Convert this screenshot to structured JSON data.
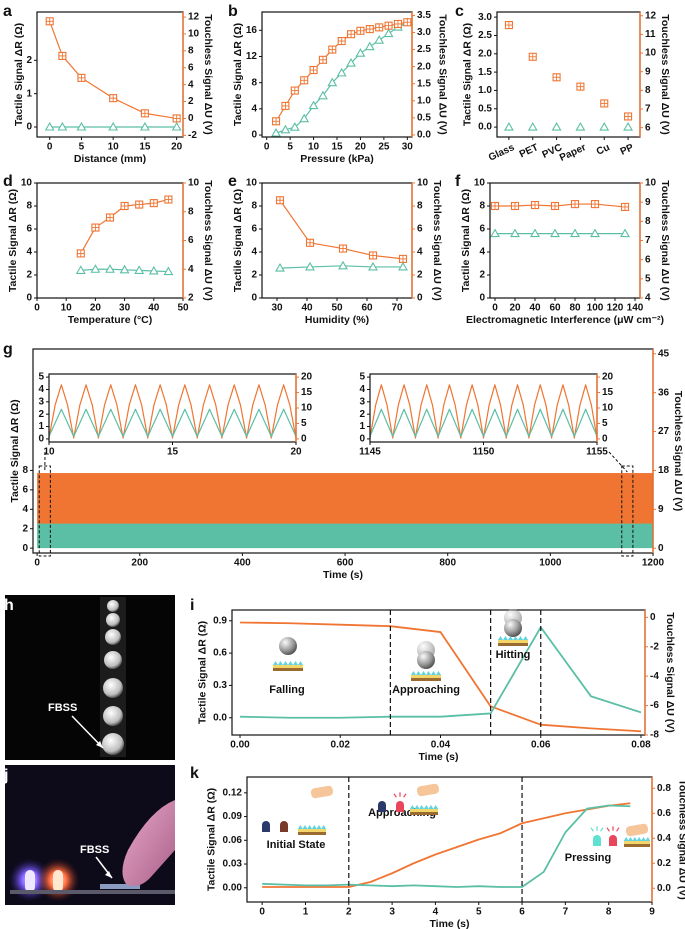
{
  "chart_data": [
    {
      "label": "a",
      "type": "line",
      "x": [
        0,
        2,
        5,
        10,
        15,
        20
      ],
      "xlim": [
        -2,
        21
      ],
      "xticks": [
        0,
        5,
        10,
        15,
        20
      ],
      "xlabel": "Distance (mm)",
      "ylim": [
        -0.3,
        3.45
      ],
      "yticks": [
        0,
        1,
        2
      ],
      "ylabel": "Tactile Signal ΔR (Ω)",
      "y2lim": [
        -2.2,
        12.6
      ],
      "y2ticks": [
        -2,
        0,
        2,
        4,
        6,
        8,
        10,
        12
      ],
      "y2label": "Touchless Signal ΔU (V)",
      "series": [
        {
          "color": "#5bbfa5",
          "marker": "triangle",
          "values": [
            0,
            0,
            0,
            0,
            0,
            0
          ]
        },
        {
          "color": "#f07533",
          "marker": "square",
          "axis": "y2",
          "values": [
            11.5,
            7.4,
            4.8,
            2.4,
            0.6,
            0
          ]
        }
      ]
    },
    {
      "label": "b",
      "type": "line",
      "x": [
        2,
        4,
        6,
        8,
        10,
        12,
        14,
        16,
        18,
        20,
        22,
        24,
        26,
        28,
        30
      ],
      "xlim": [
        -1,
        31
      ],
      "xticks": [
        0,
        5,
        10,
        15,
        20,
        25,
        30
      ],
      "xlabel": "Pressure (kPa)",
      "ylim": [
        -0.3,
        18.8
      ],
      "yticks": [
        0,
        4,
        8,
        12,
        16
      ],
      "ylabel": "Tactile Signal ΔR (Ω)",
      "y2lim": [
        -0.06,
        3.6
      ],
      "y2ticks": [
        {
          "value": 0,
          "label": "0.0"
        },
        {
          "value": 0.5,
          "label": "0.5"
        },
        {
          "value": 1,
          "label": "1.0"
        },
        {
          "value": 1.5,
          "label": "1.5"
        },
        {
          "value": 2,
          "label": "2.0"
        },
        {
          "value": 2.5,
          "label": "2.5"
        },
        {
          "value": 3,
          "label": "3.0"
        },
        {
          "value": 3.5,
          "label": "3.5"
        }
      ],
      "y2label": "Touchless Signal ΔU (V)",
      "series": [
        {
          "color": "#5bbfa5",
          "marker": "triangle",
          "values": [
            0.3,
            0.8,
            1.2,
            2.5,
            4.5,
            6,
            8,
            9.5,
            11,
            12.5,
            13.5,
            14.5,
            15.5,
            16.5,
            17.2
          ]
        },
        {
          "color": "#f07533",
          "marker": "square",
          "axis": "y2",
          "values": [
            0.4,
            0.85,
            1.3,
            1.6,
            1.9,
            2.2,
            2.5,
            2.75,
            2.95,
            3.05,
            3.1,
            3.15,
            3.2,
            3.25,
            3.3
          ]
        }
      ]
    },
    {
      "label": "c",
      "type": "scatter",
      "categories": [
        "Glass",
        "PET",
        "PVC",
        "Paper",
        "Cu",
        "PP"
      ],
      "ylim": [
        -0.27,
        3.14
      ],
      "yticks": [
        {
          "value": 0,
          "label": "0.0"
        },
        {
          "value": 0.5,
          "label": "0.5"
        },
        {
          "value": 1,
          "label": "1.0"
        },
        {
          "value": 1.5,
          "label": "1.5"
        },
        {
          "value": 2,
          "label": "2.0"
        },
        {
          "value": 2.5,
          "label": "2.5"
        },
        {
          "value": 3,
          "label": "3.0"
        }
      ],
      "ylabel": "Tactile Signal ΔR (Ω)",
      "y2lim": [
        5.5,
        12.2
      ],
      "y2ticks": [
        6,
        7,
        8,
        9,
        10,
        11,
        12
      ],
      "y2label": "Touchless Signal ΔU (V)",
      "series": [
        {
          "color": "#5bbfa5",
          "marker": "triangle",
          "values": [
            0,
            0,
            0,
            0,
            0,
            0
          ]
        },
        {
          "color": "#f07533",
          "marker": "square",
          "axis": "y2",
          "values": [
            11.5,
            9.8,
            8.7,
            8.2,
            7.3,
            6.6
          ]
        }
      ]
    },
    {
      "label": "d",
      "type": "line",
      "x": [
        15,
        20,
        25,
        30,
        35,
        40,
        45
      ],
      "xlim": [
        0,
        50
      ],
      "xticks": [
        0,
        10,
        20,
        30,
        40,
        50
      ],
      "xlabel": "Temperature (°C)",
      "ylim": [
        0,
        10
      ],
      "yticks": [
        0,
        2,
        4,
        6,
        8,
        10
      ],
      "ylabel": "Tactile Signal ΔR (Ω)",
      "y2lim": [
        2,
        10
      ],
      "y2ticks": [
        2,
        4,
        6,
        8,
        10
      ],
      "y2label": "Touchless Signal ΔU (V)",
      "series": [
        {
          "color": "#5bbfa5",
          "marker": "triangle",
          "values": [
            2.4,
            2.5,
            2.5,
            2.45,
            2.4,
            2.35,
            2.3
          ]
        },
        {
          "color": "#f07533",
          "marker": "square",
          "axis": "y2",
          "values": [
            5.1,
            6.9,
            7.6,
            8.4,
            8.5,
            8.6,
            8.85
          ]
        }
      ]
    },
    {
      "label": "e",
      "type": "line",
      "x": [
        31,
        41,
        52,
        62,
        72
      ],
      "xlim": [
        25,
        75
      ],
      "xticks": [
        30,
        40,
        50,
        60,
        70
      ],
      "xlabel": "Humidity (%)",
      "ylim": [
        0,
        10
      ],
      "yticks": [
        0,
        2,
        4,
        6,
        8,
        10
      ],
      "ylabel": "Tactile Signal ΔR (Ω)",
      "y2lim": [
        0,
        10
      ],
      "y2ticks": [
        0,
        2,
        4,
        6,
        8,
        10
      ],
      "y2label": "Touchless Signal ΔU (V)",
      "series": [
        {
          "color": "#5bbfa5",
          "marker": "triangle",
          "values": [
            2.6,
            2.7,
            2.8,
            2.7,
            2.7
          ]
        },
        {
          "color": "#f07533",
          "marker": "square",
          "axis": "y2",
          "values": [
            8.5,
            4.8,
            4.3,
            3.7,
            3.4
          ]
        }
      ]
    },
    {
      "label": "f",
      "type": "line",
      "x": [
        0,
        20,
        40,
        60,
        80,
        100,
        130
      ],
      "xlim": [
        -5,
        145
      ],
      "xticks": [
        0,
        20,
        40,
        60,
        80,
        100,
        120,
        140
      ],
      "xlabel": "Electromagnetic Interference (μW cm⁻²)",
      "ylim": [
        0,
        10
      ],
      "yticks": [
        0,
        2,
        4,
        6,
        8,
        10
      ],
      "ylabel": "Tactile Signal ΔR (Ω)",
      "y2lim": [
        4,
        10
      ],
      "y2ticks": [
        4,
        5,
        6,
        7,
        8,
        9,
        10
      ],
      "y2label": "Touchless Signal ΔU (V)",
      "series": [
        {
          "color": "#5bbfa5",
          "marker": "triangle",
          "values": [
            5.6,
            5.6,
            5.6,
            5.6,
            5.6,
            5.6,
            5.6
          ]
        },
        {
          "color": "#f07533",
          "marker": "square",
          "axis": "y2",
          "values": [
            8.8,
            8.8,
            8.85,
            8.8,
            8.9,
            8.9,
            8.75
          ]
        }
      ]
    },
    {
      "label": "g",
      "type": "band",
      "x": [
        0,
        1200
      ],
      "xlim": [
        -8,
        1200
      ],
      "xticks": [
        0,
        200,
        400,
        600,
        800,
        1000,
        1200
      ],
      "xlabel": "Time (s)",
      "ylim": [
        -0.5,
        20.5
      ],
      "yticks": [
        0,
        2,
        4,
        6,
        8
      ],
      "ylabel": "Tactile Signal ΔR (Ω)",
      "y2lim": [
        -1.1,
        46.1
      ],
      "y2ticks": [
        0,
        9,
        18,
        27,
        36,
        45
      ],
      "y2label": "Touchless Signal ΔU (V)",
      "series": [
        {
          "color": "#5bbfa5",
          "range": [
            0,
            2.7
          ]
        },
        {
          "color": "#f07533",
          "axis": "y2",
          "range": [
            5.7,
            17.4
          ]
        }
      ]
    },
    {
      "type": "line",
      "x": [
        10,
        10.25,
        10.5,
        10.75,
        11,
        11.25,
        11.5,
        11.75,
        12,
        12.25,
        12.5,
        12.75,
        13,
        13.25,
        13.5,
        13.75,
        14,
        14.25,
        14.5,
        14.75,
        15,
        15.25,
        15.5,
        15.75,
        16,
        16.25,
        16.5,
        16.75,
        17,
        17.25,
        17.5,
        17.75,
        18,
        18.25,
        18.5,
        18.75,
        19,
        19.25,
        19.5,
        19.75,
        20
      ],
      "xlim": [
        10,
        20
      ],
      "xticks": [
        10,
        15,
        20
      ],
      "ylim": [
        -0.25,
        5.25
      ],
      "yticks": [
        0,
        1,
        2,
        3,
        4,
        5
      ],
      "y2lim": [
        -1,
        21
      ],
      "y2ticks": [
        0,
        5,
        10,
        15,
        20
      ],
      "series": [
        {
          "color": "#f07533",
          "axis": "y2",
          "values": [
            0.3,
            11,
            17.5,
            11,
            0.3,
            11,
            17.5,
            11,
            0.3,
            11,
            17.5,
            11,
            0.3,
            11,
            17.5,
            11,
            0.3,
            11,
            17.5,
            11,
            0.3,
            11,
            17.5,
            11,
            0.3,
            11,
            17.5,
            11,
            0.3,
            11,
            17.5,
            11,
            0.3,
            11,
            17.5,
            11,
            0.3,
            11,
            17.5,
            11,
            0.3
          ]
        },
        {
          "color": "#5bbfa5",
          "values": [
            0.2,
            1.3,
            2.4,
            1.3,
            0.2,
            1.3,
            2.4,
            1.3,
            0.2,
            1.3,
            2.4,
            1.3,
            0.2,
            1.3,
            2.4,
            1.3,
            0.2,
            1.3,
            2.4,
            1.3,
            0.2,
            1.3,
            2.4,
            1.3,
            0.2,
            1.3,
            2.4,
            1.3,
            0.2,
            1.3,
            2.4,
            1.3,
            0.2,
            1.3,
            2.4,
            1.3,
            0.2,
            1.3,
            2.4,
            1.3,
            0.2
          ]
        }
      ]
    },
    {
      "type": "line",
      "x": [
        1145,
        1145.25,
        1145.5,
        1145.75,
        1146,
        1146.25,
        1146.5,
        1146.75,
        1147,
        1147.25,
        1147.5,
        1147.75,
        1148,
        1148.25,
        1148.5,
        1148.75,
        1149,
        1149.25,
        1149.5,
        1149.75,
        1150,
        1150.25,
        1150.5,
        1150.75,
        1151,
        1151.25,
        1151.5,
        1151.75,
        1152,
        1152.25,
        1152.5,
        1152.75,
        1153,
        1153.25,
        1153.5,
        1153.75,
        1154,
        1154.25,
        1154.5,
        1154.75,
        1155
      ],
      "xlim": [
        1145,
        1155
      ],
      "xticks": [
        1145,
        1150,
        1155
      ],
      "ylim": [
        -0.25,
        5.25
      ],
      "yticks": [
        0,
        1,
        2,
        3,
        4,
        5
      ],
      "y2lim": [
        -1,
        21
      ],
      "y2ticks": [
        0,
        5,
        10,
        15,
        20
      ],
      "series": [
        {
          "color": "#f07533",
          "axis": "y2",
          "values": [
            0.3,
            11,
            17.5,
            11,
            0.3,
            11,
            17.5,
            11,
            0.3,
            11,
            17.5,
            11,
            0.3,
            11,
            17.5,
            11,
            0.3,
            11,
            17.5,
            11,
            0.3,
            11,
            17.5,
            11,
            0.3,
            11,
            17.5,
            11,
            0.3,
            11,
            17.5,
            11,
            0.3,
            11,
            17.5,
            11,
            0.3,
            11,
            17.5,
            11,
            0.3
          ]
        },
        {
          "color": "#5bbfa5",
          "values": [
            0.2,
            1.3,
            2.4,
            1.3,
            0.2,
            1.3,
            2.4,
            1.3,
            0.2,
            1.3,
            2.4,
            1.3,
            0.2,
            1.3,
            2.4,
            1.3,
            0.2,
            1.3,
            2.4,
            1.3,
            0.2,
            1.3,
            2.4,
            1.3,
            0.2,
            1.3,
            2.4,
            1.3,
            0.2,
            1.3,
            2.4,
            1.3,
            0.2,
            1.3,
            2.4,
            1.3,
            0.2,
            1.3,
            2.4,
            1.3,
            0.2
          ]
        }
      ]
    },
    {
      "label": "i",
      "type": "line",
      "x": [
        0,
        0.01,
        0.02,
        0.03,
        0.04,
        0.05,
        0.06,
        0.07,
        0.08
      ],
      "xlim": [
        -0.0016,
        0.0808
      ],
      "xticks": [
        {
          "value": 0,
          "label": "0.00"
        },
        {
          "value": 0.02,
          "label": "0.02"
        },
        {
          "value": 0.04,
          "label": "0.04"
        },
        {
          "value": 0.06,
          "label": "0.06"
        },
        {
          "value": 0.08,
          "label": "0.08"
        }
      ],
      "xlabel": "Time (s)",
      "ylim": [
        -0.16,
        1.0
      ],
      "yticks": [
        {
          "value": 0,
          "label": "0.0"
        },
        {
          "value": 0.3,
          "label": "0.3"
        },
        {
          "value": 0.6,
          "label": "0.6"
        },
        {
          "value": 0.9,
          "label": "0.9"
        }
      ],
      "ylabel": "Tactile Signal ΔR (Ω)",
      "y2lim": [
        -8,
        0.5
      ],
      "y2ticks": [
        0,
        -2,
        -4,
        -6,
        -8
      ],
      "y2label": "Touchless Signal ΔU (V)",
      "series": [
        {
          "color": "#f07533",
          "axis": "y2",
          "values": [
            -0.35,
            -0.4,
            -0.5,
            -0.6,
            -1.0,
            -6.05,
            -7.3,
            -7.55,
            -7.75
          ]
        },
        {
          "color": "#5bbfa5",
          "values": [
            0.01,
            0,
            0,
            0.01,
            0.01,
            0.04,
            0.84,
            0.2,
            0.05
          ]
        }
      ],
      "vlines": [
        0.03,
        0.05,
        0.06
      ],
      "annotations": [
        "Falling",
        "Approaching",
        "Hitting"
      ]
    },
    {
      "label": "k",
      "type": "line",
      "x": [
        0,
        0.5,
        1,
        1.5,
        2,
        2.5,
        3,
        3.5,
        4,
        4.5,
        5,
        5.5,
        6,
        6.5,
        7,
        7.5,
        8,
        8.5
      ],
      "xlim": [
        -0.35,
        9
      ],
      "xticks": [
        0,
        1,
        2,
        3,
        4,
        5,
        6,
        7,
        8,
        9
      ],
      "xlabel": "Time (s)",
      "ylim": [
        -0.018,
        0.14
      ],
      "yticks": [
        {
          "value": 0,
          "label": "0.00"
        },
        {
          "value": 0.03,
          "label": "0.03"
        },
        {
          "value": 0.06,
          "label": "0.06"
        },
        {
          "value": 0.09,
          "label": "0.09"
        },
        {
          "value": 0.12,
          "label": "0.12"
        }
      ],
      "ylabel": "Tactile Signal ΔR (Ω)",
      "y2lim": [
        -0.11,
        0.89
      ],
      "y2ticks": [
        {
          "value": 0,
          "label": "0.0"
        },
        {
          "value": 0.2,
          "label": "0.2"
        },
        {
          "value": 0.4,
          "label": "0.4"
        },
        {
          "value": 0.6,
          "label": "0.6"
        },
        {
          "value": 0.8,
          "label": "0.8"
        }
      ],
      "y2label": "Touchless Signal ΔU (V)",
      "series": [
        {
          "color": "#f07533",
          "axis": "y2",
          "values": [
            0.01,
            0.01,
            0.01,
            0.01,
            0.01,
            0.05,
            0.12,
            0.2,
            0.27,
            0.33,
            0.39,
            0.44,
            0.52,
            0.56,
            0.6,
            0.63,
            0.66,
            0.68
          ]
        },
        {
          "color": "#5bbfa5",
          "values": [
            0.005,
            0.004,
            0.003,
            0.003,
            0.004,
            0.003,
            0.002,
            0.003,
            0.002,
            0.001,
            0.002,
            0.001,
            0.001,
            0.02,
            0.07,
            0.1,
            0.104,
            0.103
          ]
        }
      ],
      "vlines": [
        2,
        6
      ],
      "annotations": [
        "Initial State",
        "Approaching",
        "Pressing"
      ]
    }
  ],
  "images": [
    {
      "label": "h",
      "text": "FBSS"
    },
    {
      "label": "j",
      "text": "FBSS"
    }
  ]
}
